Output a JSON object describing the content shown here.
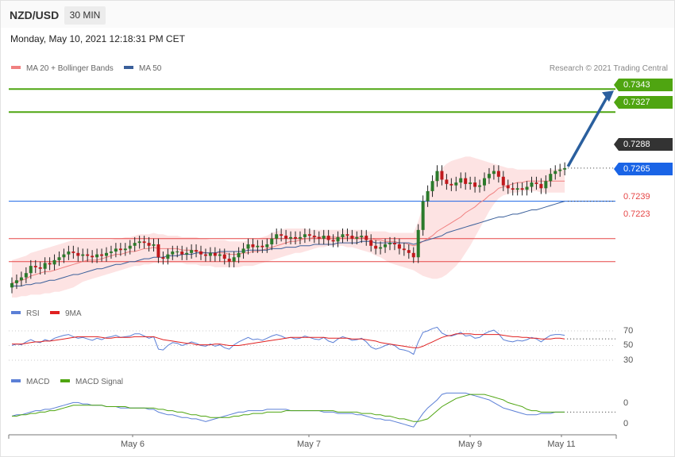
{
  "header": {
    "symbol": "NZD/USD",
    "timeframe": "30 MIN",
    "datetime": "Monday, May 10, 2021 12:18:31 PM CET"
  },
  "legends": {
    "ma20": "MA 20 + Bollinger Bands",
    "ma50": "MA 50",
    "rsi": "RSI",
    "rsi_ma": "9MA",
    "macd": "MACD",
    "macd_signal": "MACD Signal"
  },
  "credit": "Research © 2021 Trading Central",
  "colors": {
    "green_level": "#4fa511",
    "blue_level": "#1a64e6",
    "red_level": "#e64646",
    "current": "#333333",
    "ma20": "#f08080",
    "ma50": "#3a5f9a",
    "bb_fill": "#fddede",
    "candle_up": "#2b7a2b",
    "candle_down": "#c0181c",
    "arrow": "#2a5f9e",
    "rsi": "#5b7fd6",
    "rsi_ma": "#e02020",
    "macd": "#5b7fd6",
    "macd_signal": "#4fa511"
  },
  "price_levels": {
    "r2": "0.7343",
    "r1": "0.7327",
    "current": "0.7288",
    "pivot": "0.7265",
    "s1": "0.7239",
    "s2": "0.7223"
  },
  "x_labels": [
    "May 6",
    "May 7",
    "May 9",
    "May 11"
  ],
  "rsi_ticks": [
    "70",
    "50",
    "30"
  ],
  "macd_ticks": [
    "0",
    "0"
  ],
  "chart_data": {
    "type": "line",
    "title": "NZD/USD 30 MIN",
    "ylim": [
      0.7198,
      0.7347
    ],
    "price": [
      0.7208,
      0.721,
      0.7212,
      0.7215,
      0.722,
      0.7219,
      0.7218,
      0.7222,
      0.7221,
      0.7224,
      0.7226,
      0.7228,
      0.723,
      0.7229,
      0.7227,
      0.7228,
      0.7227,
      0.7226,
      0.7228,
      0.7227,
      0.7229,
      0.723,
      0.7232,
      0.7231,
      0.7232,
      0.7234,
      0.7236,
      0.7237,
      0.7236,
      0.7234,
      0.7235,
      0.7226,
      0.7225,
      0.7228,
      0.723,
      0.723,
      0.7228,
      0.7229,
      0.7231,
      0.723,
      0.7228,
      0.7227,
      0.7229,
      0.7227,
      0.7228,
      0.7225,
      0.7223,
      0.7226,
      0.7229,
      0.7232,
      0.7235,
      0.7233,
      0.7234,
      0.7233,
      0.7235,
      0.7239,
      0.7242,
      0.7241,
      0.7239,
      0.724,
      0.7239,
      0.724,
      0.7242,
      0.7241,
      0.724,
      0.7239,
      0.7241,
      0.7238,
      0.7237,
      0.724,
      0.7242,
      0.7241,
      0.7239,
      0.724,
      0.7241,
      0.7238,
      0.7234,
      0.7232,
      0.7233,
      0.7235,
      0.7236,
      0.7235,
      0.7232,
      0.7231,
      0.7229,
      0.7226,
      0.7245,
      0.7265,
      0.7272,
      0.7279,
      0.7286,
      0.728,
      0.7277,
      0.7276,
      0.7278,
      0.7281,
      0.7277,
      0.7278,
      0.7275,
      0.7276,
      0.7281,
      0.7284,
      0.7286,
      0.7282,
      0.7276,
      0.7274,
      0.7273,
      0.7274,
      0.7273,
      0.7275,
      0.7278,
      0.7277,
      0.7274,
      0.7279,
      0.7284,
      0.7286,
      0.7287,
      0.7288
    ],
    "ma20": [
      0.7208,
      0.7209,
      0.721,
      0.7211,
      0.7213,
      0.7214,
      0.7215,
      0.7216,
      0.7216,
      0.7217,
      0.7218,
      0.7219,
      0.722,
      0.7221,
      0.7222,
      0.7223,
      0.7224,
      0.7224,
      0.7224,
      0.7225,
      0.7226,
      0.7227,
      0.7228,
      0.7228,
      0.7229,
      0.723,
      0.723,
      0.7231,
      0.7232,
      0.7232,
      0.7233,
      0.7232,
      0.7232,
      0.7232,
      0.7232,
      0.7232,
      0.7231,
      0.7231,
      0.7231,
      0.723,
      0.723,
      0.7229,
      0.7229,
      0.7229,
      0.7229,
      0.7229,
      0.7228,
      0.7228,
      0.7228,
      0.7229,
      0.7229,
      0.723,
      0.723,
      0.7231,
      0.7232,
      0.7233,
      0.7234,
      0.7235,
      0.7236,
      0.7237,
      0.7237,
      0.7238,
      0.7239,
      0.7239,
      0.724,
      0.724,
      0.724,
      0.724,
      0.724,
      0.724,
      0.724,
      0.724,
      0.724,
      0.724,
      0.724,
      0.7239,
      0.7239,
      0.7238,
      0.7238,
      0.7237,
      0.7237,
      0.7237,
      0.7236,
      0.7236,
      0.7235,
      0.7234,
      0.7235,
      0.7237,
      0.7239,
      0.7241,
      0.7244,
      0.7246,
      0.7248,
      0.725,
      0.7252,
      0.7254,
      0.7257,
      0.7259,
      0.7261,
      0.7264,
      0.7266,
      0.7269,
      0.7271,
      0.7274,
      0.7275,
      0.7276,
      0.7277,
      0.7278,
      0.7278,
      0.7279,
      0.7279,
      0.7279,
      0.7279,
      0.7279,
      0.7279,
      0.7279,
      0.7279,
      0.7279
    ],
    "ma50": [
      0.7206,
      0.7206,
      0.7206,
      0.7207,
      0.7207,
      0.7208,
      0.7208,
      0.7209,
      0.721,
      0.721,
      0.7211,
      0.7212,
      0.7213,
      0.7214,
      0.7214,
      0.7215,
      0.7216,
      0.7217,
      0.7218,
      0.7218,
      0.7219,
      0.722,
      0.7221,
      0.7221,
      0.7222,
      0.7223,
      0.7223,
      0.7224,
      0.7225,
      0.7225,
      0.7226,
      0.7226,
      0.7226,
      0.7227,
      0.7227,
      0.7227,
      0.7228,
      0.7228,
      0.7228,
      0.7229,
      0.7229,
      0.7229,
      0.7229,
      0.7229,
      0.723,
      0.723,
      0.723,
      0.723,
      0.723,
      0.723,
      0.7231,
      0.7231,
      0.7231,
      0.7231,
      0.7231,
      0.7232,
      0.7232,
      0.7232,
      0.7233,
      0.7233,
      0.7233,
      0.7234,
      0.7234,
      0.7234,
      0.7235,
      0.7235,
      0.7235,
      0.7235,
      0.7235,
      0.7236,
      0.7236,
      0.7236,
      0.7236,
      0.7236,
      0.7237,
      0.7237,
      0.7237,
      0.7236,
      0.7236,
      0.7236,
      0.7236,
      0.7236,
      0.7236,
      0.7236,
      0.7236,
      0.7235,
      0.7236,
      0.7237,
      0.7238,
      0.7239,
      0.724,
      0.7241,
      0.7243,
      0.7244,
      0.7245,
      0.7246,
      0.7247,
      0.7248,
      0.7249,
      0.725,
      0.7251,
      0.7252,
      0.7253,
      0.7254,
      0.7254,
      0.7255,
      0.7256,
      0.7256,
      0.7257,
      0.7258,
      0.7259,
      0.7259,
      0.726,
      0.7261,
      0.7262,
      0.7263,
      0.7264,
      0.7265
    ],
    "bb_upper": [
      0.7224,
      0.7225,
      0.7226,
      0.7227,
      0.7229,
      0.723,
      0.7231,
      0.7232,
      0.7233,
      0.7234,
      0.7235,
      0.7236,
      0.7237,
      0.7238,
      0.7238,
      0.7238,
      0.7238,
      0.7238,
      0.7238,
      0.7238,
      0.7238,
      0.7238,
      0.7239,
      0.7239,
      0.724,
      0.724,
      0.7241,
      0.7242,
      0.7242,
      0.7242,
      0.7243,
      0.7242,
      0.7242,
      0.7241,
      0.7241,
      0.7241,
      0.724,
      0.724,
      0.724,
      0.724,
      0.7239,
      0.7239,
      0.7238,
      0.7238,
      0.7238,
      0.7238,
      0.7237,
      0.7237,
      0.7237,
      0.7237,
      0.7238,
      0.7239,
      0.7239,
      0.724,
      0.7241,
      0.7243,
      0.7244,
      0.7245,
      0.7246,
      0.7246,
      0.7246,
      0.7246,
      0.7246,
      0.7245,
      0.7245,
      0.7245,
      0.7245,
      0.7245,
      0.7245,
      0.7245,
      0.7245,
      0.7245,
      0.7245,
      0.7245,
      0.7245,
      0.7244,
      0.7244,
      0.7244,
      0.7244,
      0.7244,
      0.7243,
      0.7243,
      0.7243,
      0.7243,
      0.7243,
      0.7243,
      0.7251,
      0.7262,
      0.727,
      0.7278,
      0.7284,
      0.7288,
      0.7291,
      0.7293,
      0.7294,
      0.7295,
      0.7296,
      0.7296,
      0.7295,
      0.7294,
      0.7293,
      0.7292,
      0.7291,
      0.729,
      0.7289,
      0.7288,
      0.7288,
      0.7287,
      0.7287,
      0.7287,
      0.7287,
      0.7287,
      0.7287,
      0.7287,
      0.7287,
      0.7287,
      0.7288,
      0.7288
    ],
    "bb_lower": [
      0.7198,
      0.7198,
      0.7199,
      0.7199,
      0.72,
      0.72,
      0.72,
      0.7201,
      0.7201,
      0.7202,
      0.7202,
      0.7203,
      0.7204,
      0.7205,
      0.7207,
      0.7209,
      0.721,
      0.7211,
      0.7212,
      0.7213,
      0.7214,
      0.7215,
      0.7216,
      0.7217,
      0.7218,
      0.7219,
      0.722,
      0.722,
      0.7221,
      0.7221,
      0.7222,
      0.7222,
      0.7222,
      0.7222,
      0.7222,
      0.7222,
      0.7222,
      0.7221,
      0.7221,
      0.7221,
      0.722,
      0.722,
      0.722,
      0.7219,
      0.7219,
      0.7219,
      0.7219,
      0.7219,
      0.7219,
      0.722,
      0.722,
      0.722,
      0.7221,
      0.7222,
      0.7223,
      0.7224,
      0.7225,
      0.7226,
      0.7227,
      0.7228,
      0.7229,
      0.7229,
      0.723,
      0.7231,
      0.7232,
      0.7233,
      0.7233,
      0.7234,
      0.7234,
      0.7234,
      0.7234,
      0.7233,
      0.7233,
      0.7232,
      0.7231,
      0.723,
      0.7229,
      0.7227,
      0.7226,
      0.7224,
      0.7222,
      0.7221,
      0.722,
      0.7219,
      0.7218,
      0.7217,
      0.7215,
      0.7213,
      0.7212,
      0.7211,
      0.7211,
      0.7212,
      0.7214,
      0.7217,
      0.722,
      0.7224,
      0.7229,
      0.7234,
      0.724,
      0.7246,
      0.7252,
      0.7258,
      0.7263,
      0.7267,
      0.7269,
      0.727,
      0.7271,
      0.7271,
      0.7272,
      0.7272,
      0.7272,
      0.7272,
      0.7271,
      0.7271,
      0.7271,
      0.7271,
      0.7271,
      0.7271
    ],
    "rsi": {
      "ylim": [
        30,
        70
      ],
      "rsi": [
        50,
        52,
        51,
        55,
        58,
        55,
        54,
        58,
        56,
        60,
        62,
        64,
        65,
        62,
        60,
        61,
        59,
        57,
        60,
        58,
        61,
        62,
        64,
        61,
        62,
        63,
        66,
        66,
        63,
        60,
        62,
        45,
        44,
        50,
        54,
        53,
        50,
        52,
        55,
        53,
        50,
        49,
        52,
        49,
        51,
        47,
        45,
        51,
        55,
        58,
        61,
        58,
        59,
        57,
        60,
        63,
        65,
        63,
        60,
        61,
        59,
        60,
        63,
        61,
        59,
        58,
        61,
        56,
        54,
        59,
        62,
        60,
        57,
        58,
        60,
        55,
        48,
        45,
        47,
        50,
        52,
        50,
        45,
        44,
        42,
        38,
        55,
        68,
        70,
        73,
        75,
        67,
        64,
        63,
        65,
        68,
        63,
        64,
        60,
        61,
        66,
        69,
        71,
        66,
        58,
        56,
        55,
        57,
        56,
        58,
        61,
        59,
        55,
        60,
        64,
        65,
        65,
        64
      ],
      "ma9": [
        52,
        52,
        52,
        53,
        54,
        55,
        55,
        56,
        56,
        57,
        58,
        59,
        60,
        61,
        62,
        62,
        62,
        62,
        62,
        61,
        60,
        60,
        61,
        61,
        61,
        61,
        62,
        62,
        62,
        62,
        62,
        60,
        58,
        57,
        56,
        55,
        54,
        53,
        53,
        51,
        51,
        51,
        51,
        52,
        52,
        51,
        50,
        50,
        50,
        51,
        52,
        53,
        54,
        55,
        56,
        57,
        58,
        59,
        60,
        61,
        61,
        61,
        61,
        61,
        61,
        61,
        61,
        60,
        60,
        60,
        60,
        60,
        59,
        59,
        59,
        58,
        57,
        56,
        54,
        53,
        52,
        51,
        50,
        49,
        48,
        47,
        47,
        49,
        52,
        55,
        58,
        61,
        63,
        64,
        66,
        66,
        66,
        66,
        65,
        65,
        65,
        65,
        65,
        65,
        64,
        63,
        62,
        62,
        61,
        61,
        60,
        60,
        59,
        59,
        59,
        60,
        60,
        59
      ]
    },
    "macd": {
      "ylim": [
        -0.0012,
        0.0019
      ],
      "macd": [
        0.0,
        0.0001,
        0.0001,
        0.0002,
        0.0003,
        0.0004,
        0.0004,
        0.0005,
        0.0005,
        0.0006,
        0.0007,
        0.0008,
        0.0009,
        0.001,
        0.001,
        0.0009,
        0.0009,
        0.0008,
        0.0008,
        0.0008,
        0.0007,
        0.0007,
        0.0007,
        0.0006,
        0.0006,
        0.0006,
        0.0006,
        0.0006,
        0.0006,
        0.0005,
        0.0005,
        0.0003,
        0.0002,
        0.0001,
        0.0001,
        0.0,
        -0.0001,
        -0.0001,
        -0.0002,
        -0.0002,
        -0.0003,
        -0.0004,
        -0.0003,
        -0.0002,
        -0.0001,
        0.0,
        0.0001,
        0.0002,
        0.0003,
        0.0003,
        0.0004,
        0.0004,
        0.0004,
        0.0004,
        0.0005,
        0.0005,
        0.0005,
        0.0005,
        0.0005,
        0.0004,
        0.0004,
        0.0004,
        0.0004,
        0.0004,
        0.0004,
        0.0004,
        0.0003,
        0.0003,
        0.0003,
        0.0002,
        0.0002,
        0.0002,
        0.0002,
        0.0001,
        0.0001,
        0.0,
        -0.0001,
        -0.0002,
        -0.0002,
        -0.0003,
        -0.0003,
        -0.0004,
        -0.0005,
        -0.0006,
        -0.0007,
        -0.0008,
        -0.0003,
        0.0002,
        0.0006,
        0.0009,
        0.0012,
        0.0016,
        0.0017,
        0.0017,
        0.0017,
        0.0017,
        0.0017,
        0.0016,
        0.0015,
        0.0014,
        0.0013,
        0.0012,
        0.001,
        0.0008,
        0.0006,
        0.0005,
        0.0004,
        0.0003,
        0.0002,
        0.0001,
        0.0001,
        0.0001,
        0.0002,
        0.0002,
        0.0002,
        0.0003,
        0.0003,
        0.0003
      ],
      "signal": [
        0.0,
        0.0,
        0.0001,
        0.0001,
        0.0002,
        0.0002,
        0.0003,
        0.0003,
        0.0004,
        0.0004,
        0.0005,
        0.0006,
        0.0007,
        0.0008,
        0.0008,
        0.0008,
        0.0008,
        0.0008,
        0.0008,
        0.0008,
        0.0007,
        0.0007,
        0.0007,
        0.0007,
        0.0007,
        0.0006,
        0.0006,
        0.0006,
        0.0006,
        0.0006,
        0.0006,
        0.0005,
        0.0005,
        0.0004,
        0.0004,
        0.0003,
        0.0003,
        0.0002,
        0.0001,
        0.0001,
        0.0,
        0.0,
        -0.0001,
        -0.0001,
        -0.0001,
        -0.0001,
        -0.0001,
        0.0,
        0.0,
        0.0001,
        0.0001,
        0.0002,
        0.0002,
        0.0002,
        0.0003,
        0.0003,
        0.0003,
        0.0003,
        0.0004,
        0.0004,
        0.0004,
        0.0004,
        0.0004,
        0.0004,
        0.0004,
        0.0004,
        0.0004,
        0.0004,
        0.0004,
        0.0003,
        0.0003,
        0.0003,
        0.0003,
        0.0003,
        0.0002,
        0.0002,
        0.0002,
        0.0001,
        0.0001,
        0.0,
        0.0,
        -0.0001,
        -0.0002,
        -0.0002,
        -0.0003,
        -0.0004,
        -0.0004,
        -0.0003,
        -0.0002,
        0.0001,
        0.0004,
        0.0007,
        0.0009,
        0.0011,
        0.0013,
        0.0014,
        0.0015,
        0.0016,
        0.0016,
        0.0016,
        0.0016,
        0.0015,
        0.0014,
        0.0013,
        0.0012,
        0.001,
        0.0009,
        0.0008,
        0.0007,
        0.0005,
        0.0004,
        0.0004,
        0.0003,
        0.0003,
        0.0003,
        0.0003,
        0.0003,
        0.0003
      ]
    }
  }
}
